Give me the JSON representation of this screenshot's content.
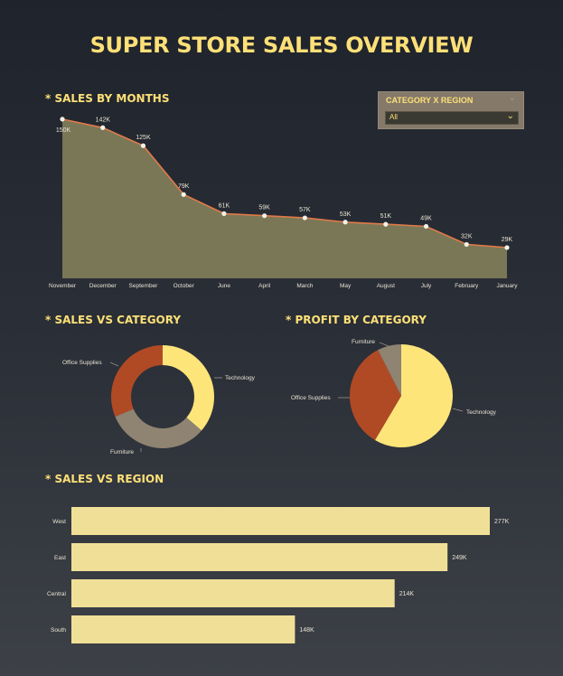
{
  "title": "SUPER STORE SALES OVERVIEW",
  "sections": {
    "sales_by_months": "* SALES BY MONTHS",
    "sales_vs_category": "* SALES VS CATEGORY",
    "profit_by_category": "* PROFIT BY CATEGORY",
    "sales_vs_region": "* SALES VS REGION"
  },
  "slicer": {
    "title": "CATEGORY X REGION",
    "value": "All"
  },
  "colors": {
    "title": "#fde077",
    "area_fill": "#7a7756",
    "line": "#e07a4a",
    "technology": "#fde57a",
    "furniture": "#8f8372",
    "office_supplies": "#b04a25",
    "region_bar": "#f0e097"
  },
  "chart_data": [
    {
      "type": "area",
      "categories": [
        "November",
        "December",
        "September",
        "October",
        "June",
        "April",
        "March",
        "May",
        "August",
        "July",
        "February",
        "January"
      ],
      "values": [
        150,
        142,
        125,
        79,
        61,
        59,
        57,
        53,
        51,
        49,
        32,
        29
      ],
      "labels": [
        "150K",
        "142K",
        "125K",
        "79K",
        "61K",
        "59K",
        "57K",
        "53K",
        "51K",
        "49K",
        "32K",
        "29K"
      ],
      "ylim": [
        0,
        155
      ]
    },
    {
      "type": "pie",
      "variant": "donut",
      "categories": [
        "Technology",
        "Furniture",
        "Office Supplies"
      ],
      "values": [
        36.4,
        32.3,
        31.3
      ]
    },
    {
      "type": "pie",
      "categories": [
        "Technology",
        "Office Supplies",
        "Furniture"
      ],
      "values": [
        58.5,
        34.0,
        7.5
      ]
    },
    {
      "type": "bar",
      "orientation": "horizontal",
      "categories": [
        "West",
        "East",
        "Central",
        "South"
      ],
      "values": [
        277,
        249,
        214,
        148
      ],
      "labels": [
        "277K",
        "249K",
        "214K",
        "148K"
      ]
    }
  ]
}
